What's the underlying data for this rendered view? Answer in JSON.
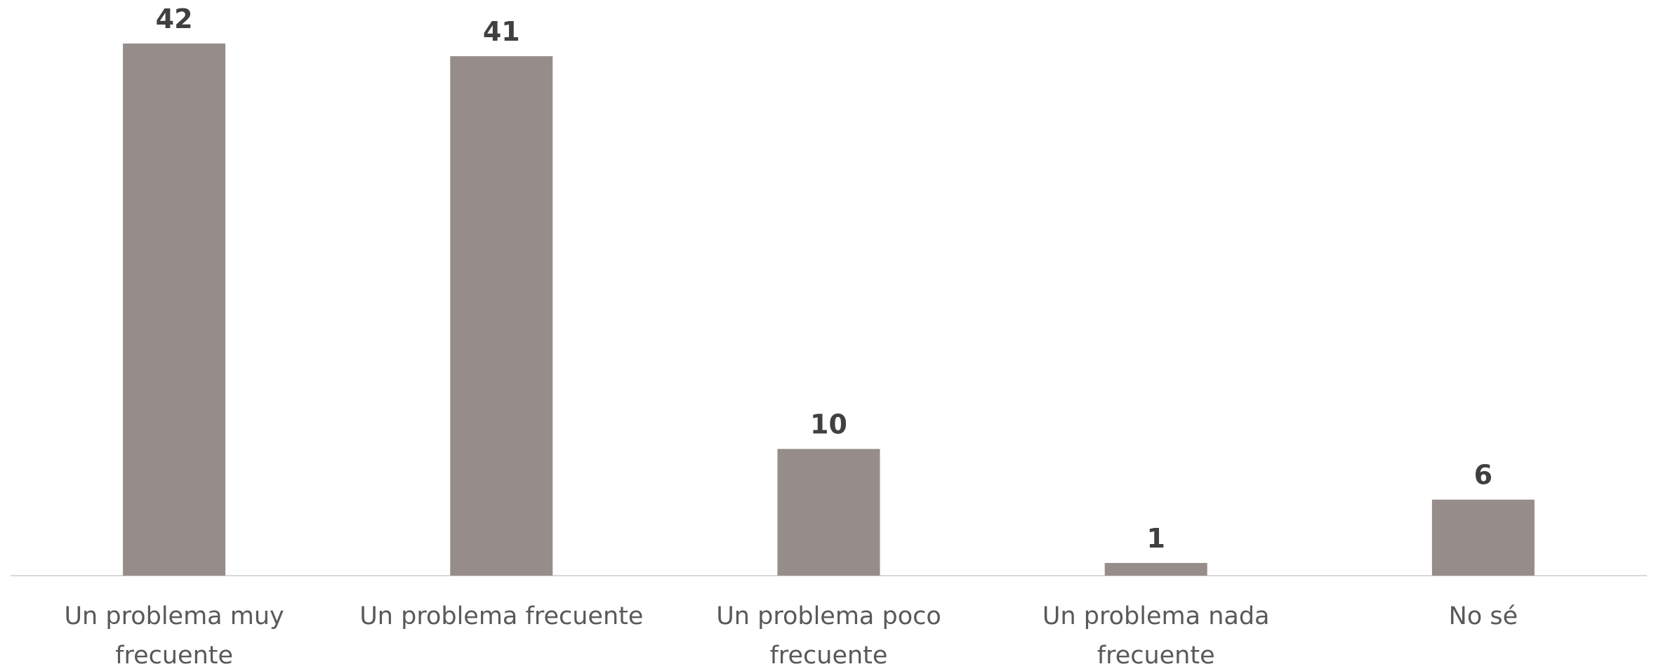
{
  "chart_data": {
    "type": "bar",
    "categories": [
      "Un problema muy frecuente",
      "Un problema frecuente",
      "Un problema poco frecuente",
      "Un problema nada frecuente",
      "No sé"
    ],
    "values": [
      42,
      41,
      10,
      1,
      6
    ],
    "color": "#968d8a"
  }
}
